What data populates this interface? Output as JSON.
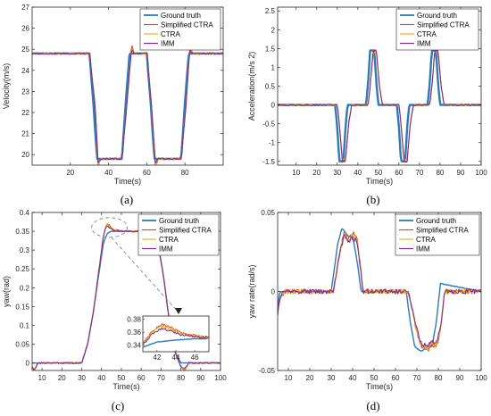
{
  "colors": {
    "Ground truth": "#2b7bba",
    "Simplified CTRA": "#d95319",
    "CTRA": "#edb120",
    "IMM": "#7e2f8e"
  },
  "chart_data": [
    {
      "type": "line",
      "caption": "(a)",
      "xlabel": "Time(s)",
      "ylabel": "Velocity(m/s)",
      "xlim": [
        0,
        100
      ],
      "ylim": [
        19.5,
        27
      ],
      "xticks": [
        20,
        40,
        60,
        80
      ],
      "yticks": [
        20,
        21,
        22,
        23,
        24,
        25,
        26,
        27
      ],
      "legend_position": "top-right",
      "legend": [
        "Ground truth",
        "Simplified CTRA",
        "CTRA",
        "IMM"
      ],
      "series": [
        {
          "name": "Ground truth",
          "x": [
            0,
            30,
            32,
            34,
            40,
            47,
            49,
            51,
            60,
            62,
            64,
            70,
            78,
            80,
            82,
            100
          ],
          "y": [
            24.8,
            24.8,
            22.5,
            19.8,
            19.8,
            19.8,
            22.5,
            24.8,
            24.8,
            22.5,
            19.8,
            19.8,
            19.8,
            22.5,
            24.8,
            24.8
          ]
        },
        {
          "name": "Simplified CTRA",
          "x": [
            0,
            30,
            33,
            34.5,
            36,
            40,
            47,
            49.5,
            52,
            53.5,
            56,
            60,
            62.5,
            64.5,
            66,
            70,
            78,
            80.5,
            82.5,
            84,
            100
          ],
          "y": [
            24.8,
            24.8,
            22.3,
            19.4,
            19.8,
            19.8,
            19.8,
            22.3,
            25.2,
            24.8,
            24.8,
            24.8,
            22.3,
            19.4,
            19.8,
            19.8,
            19.8,
            22.3,
            25.2,
            24.8,
            24.8
          ]
        },
        {
          "name": "CTRA",
          "x": [
            0,
            30,
            33,
            34.5,
            36,
            40,
            47,
            49.5,
            52,
            53.5,
            56,
            60,
            62.5,
            64.5,
            66,
            70,
            78,
            80.5,
            82.5,
            84,
            100
          ],
          "y": [
            24.8,
            24.8,
            22.3,
            19.5,
            19.8,
            19.8,
            19.8,
            22.3,
            25.1,
            24.8,
            24.8,
            24.8,
            22.3,
            19.5,
            19.8,
            19.8,
            19.8,
            22.3,
            25.1,
            24.8,
            24.8
          ]
        },
        {
          "name": "IMM",
          "x": [
            0,
            30,
            33,
            34.5,
            36,
            40,
            47,
            49.5,
            52,
            53.5,
            56,
            60,
            62.5,
            64.5,
            66,
            70,
            78,
            80.5,
            82.5,
            84,
            100
          ],
          "y": [
            24.8,
            24.8,
            22.3,
            19.6,
            19.8,
            19.8,
            19.8,
            22.3,
            25.0,
            24.8,
            24.8,
            24.8,
            22.3,
            19.6,
            19.8,
            19.8,
            19.8,
            22.3,
            25.0,
            24.8,
            24.8
          ]
        }
      ]
    },
    {
      "type": "line",
      "caption": "(b)",
      "xlabel": "Time(s)",
      "ylabel": "Acceleration(m/s 2)",
      "xlim": [
        1,
        100
      ],
      "ylim": [
        -1.6,
        2.6
      ],
      "xticks": [
        10,
        20,
        30,
        40,
        50,
        60,
        70,
        80,
        90,
        100
      ],
      "yticks": [
        -1.5,
        -1,
        -0.5,
        0,
        0.5,
        1,
        1.5,
        2,
        2.5
      ],
      "legend_position": "top-right",
      "legend": [
        "Ground truth",
        "Simplified CTRA",
        "CTRA",
        "IMM"
      ],
      "series": [
        {
          "name": "Ground truth",
          "x": [
            1,
            29,
            30,
            31,
            33,
            34,
            35,
            44,
            45,
            46,
            48,
            49,
            50,
            59,
            60,
            61,
            63,
            64,
            65,
            74,
            75,
            76,
            78,
            79,
            80,
            100
          ],
          "y": [
            0,
            0,
            -0.6,
            -1.5,
            -1.5,
            -0.6,
            0,
            0,
            0.6,
            1.45,
            1.45,
            0.6,
            0,
            0,
            -0.6,
            -1.5,
            -1.5,
            -0.6,
            0,
            0,
            0.6,
            1.45,
            1.45,
            0.6,
            0,
            0
          ]
        },
        {
          "name": "Simplified CTRA",
          "x": [
            1,
            30,
            31,
            32.5,
            34,
            35.5,
            37,
            45,
            46,
            47.5,
            49,
            50.5,
            52,
            60,
            61,
            62.5,
            64,
            65.5,
            67,
            75,
            76,
            77.5,
            79,
            80.5,
            82,
            100
          ],
          "y": [
            0,
            0,
            -0.5,
            -1.5,
            -1.5,
            -0.5,
            0,
            0,
            0.5,
            1.45,
            1.45,
            0.5,
            0,
            0,
            -0.5,
            -1.5,
            -1.5,
            -0.5,
            0,
            0,
            0.5,
            1.45,
            1.45,
            0.5,
            0,
            0
          ]
        },
        {
          "name": "CTRA",
          "x": [
            1,
            30,
            31,
            32.5,
            34,
            35.5,
            37,
            45,
            46,
            47.5,
            49,
            50.5,
            52,
            60,
            61,
            62.5,
            64,
            65.5,
            67,
            75,
            76,
            77.5,
            79,
            80.5,
            82,
            100
          ],
          "y": [
            0,
            0,
            -0.5,
            -1.45,
            -1.45,
            -0.5,
            0,
            0,
            0.5,
            1.4,
            1.4,
            0.5,
            0,
            0,
            -0.5,
            -1.45,
            -1.45,
            -0.5,
            0,
            0,
            0.5,
            1.4,
            1.4,
            0.5,
            0,
            0
          ]
        },
        {
          "name": "IMM",
          "x": [
            1,
            30,
            31,
            32.5,
            34,
            35.5,
            37,
            45,
            46,
            47.5,
            49,
            50.5,
            52,
            60,
            61,
            62.5,
            64,
            65.5,
            67,
            75,
            76,
            77.5,
            79,
            80.5,
            82,
            100
          ],
          "y": [
            0,
            0,
            -0.5,
            -1.5,
            -1.5,
            -0.5,
            0,
            0,
            0.5,
            1.45,
            1.45,
            0.5,
            0,
            0,
            -0.5,
            -1.5,
            -1.5,
            -0.5,
            0,
            0,
            0.5,
            1.45,
            1.45,
            0.5,
            0,
            0
          ]
        }
      ]
    },
    {
      "type": "line",
      "caption": "(c)",
      "xlabel": "Time(s)",
      "ylabel": "yaw(rad)",
      "xlim": [
        5,
        100
      ],
      "ylim": [
        -0.02,
        0.4
      ],
      "xticks": [
        10,
        20,
        30,
        40,
        50,
        60,
        70,
        80,
        90,
        100
      ],
      "yticks": [
        0,
        0.05,
        0.1,
        0.15,
        0.2,
        0.25,
        0.3,
        0.35,
        0.4
      ],
      "legend_position": "top-right",
      "legend": [
        "Ground truth",
        "Simplified CTRA",
        "CTRA",
        "IMM"
      ],
      "series": [
        {
          "name": "Ground truth",
          "x": [
            5,
            30,
            33,
            36,
            39,
            41,
            43,
            45,
            50,
            65,
            68,
            71,
            74,
            77,
            80,
            100
          ],
          "y": [
            0,
            0,
            0.05,
            0.14,
            0.25,
            0.32,
            0.345,
            0.35,
            0.35,
            0.35,
            0.33,
            0.24,
            0.12,
            0.03,
            0,
            0
          ]
        },
        {
          "name": "Simplified CTRA",
          "x": [
            5,
            6,
            8,
            30,
            33,
            36,
            39,
            41,
            42.5,
            44,
            46,
            50,
            65,
            68,
            71,
            74,
            77,
            80,
            82,
            84,
            100
          ],
          "y": [
            -0.01,
            -0.02,
            0,
            0,
            0.05,
            0.14,
            0.26,
            0.34,
            0.37,
            0.365,
            0.355,
            0.35,
            0.35,
            0.33,
            0.24,
            0.12,
            0.03,
            -0.01,
            -0.02,
            0,
            0
          ]
        },
        {
          "name": "CTRA",
          "x": [
            5,
            6,
            8,
            30,
            33,
            36,
            39,
            41,
            42.5,
            44,
            46,
            50,
            65,
            68,
            71,
            74,
            77,
            80,
            82,
            84,
            100
          ],
          "y": [
            -0.01,
            -0.02,
            0,
            0,
            0.05,
            0.14,
            0.26,
            0.34,
            0.368,
            0.362,
            0.354,
            0.35,
            0.35,
            0.33,
            0.24,
            0.12,
            0.03,
            -0.01,
            -0.02,
            0,
            0
          ]
        },
        {
          "name": "IMM",
          "x": [
            5,
            6,
            8,
            30,
            33,
            36,
            39,
            41,
            42.5,
            44,
            46,
            50,
            65,
            68,
            71,
            74,
            77,
            80,
            82,
            84,
            100
          ],
          "y": [
            -0.01,
            -0.02,
            0,
            0,
            0.05,
            0.14,
            0.26,
            0.34,
            0.365,
            0.36,
            0.352,
            0.35,
            0.35,
            0.33,
            0.24,
            0.12,
            0.03,
            -0.01,
            -0.015,
            0,
            0
          ]
        }
      ],
      "inset": {
        "xlim": [
          40.5,
          47.5
        ],
        "ylim": [
          0.33,
          0.385
        ],
        "xticks": [
          42,
          44,
          46
        ],
        "yticks": [
          0.34,
          0.36,
          0.38
        ],
        "series": [
          {
            "name": "Ground truth",
            "x": [
              40.5,
              42,
              44,
              46,
              47.5
            ],
            "y": [
              0.337,
              0.345,
              0.348,
              0.35,
              0.35
            ]
          },
          {
            "name": "Simplified CTRA",
            "x": [
              40.5,
              41.5,
              42.5,
              43.5,
              44.5,
              45.5,
              46.5,
              47.5
            ],
            "y": [
              0.342,
              0.362,
              0.372,
              0.367,
              0.36,
              0.356,
              0.354,
              0.352
            ]
          },
          {
            "name": "CTRA",
            "x": [
              40.5,
              41.5,
              42.5,
              43.5,
              44.5,
              45.5,
              46.5,
              47.5
            ],
            "y": [
              0.341,
              0.36,
              0.37,
              0.365,
              0.358,
              0.355,
              0.353,
              0.351
            ]
          },
          {
            "name": "IMM",
            "x": [
              40.5,
              41.5,
              42.5,
              43.5,
              44.5,
              45.5,
              46.5,
              47.5
            ],
            "y": [
              0.34,
              0.358,
              0.366,
              0.362,
              0.356,
              0.354,
              0.352,
              0.351
            ]
          }
        ]
      }
    },
    {
      "type": "line",
      "caption": "(d)",
      "xlabel": "Time(s)",
      "ylabel": "yaw rate(rad/s)",
      "xlim": [
        5,
        100
      ],
      "ylim": [
        -0.05,
        0.05
      ],
      "xticks": [
        10,
        20,
        30,
        40,
        50,
        60,
        70,
        80,
        90,
        100
      ],
      "yticks": [
        -0.05,
        0,
        0.05
      ],
      "legend_position": "top-right",
      "legend": [
        "Ground truth",
        "Simplified CTRA",
        "CTRA",
        "IMM"
      ],
      "series": [
        {
          "name": "Ground truth",
          "x": [
            5,
            6,
            8,
            30,
            33,
            35,
            38,
            40,
            42,
            44,
            65,
            67,
            69,
            72,
            75,
            77,
            79,
            81,
            100
          ],
          "y": [
            -0.01,
            0,
            0,
            0,
            0.03,
            0.04,
            0.035,
            0.035,
            0.02,
            0,
            0,
            -0.02,
            -0.035,
            -0.038,
            -0.035,
            -0.035,
            -0.02,
            0.005,
            0
          ]
        },
        {
          "name": "Simplified CTRA",
          "x": [
            5,
            6,
            8,
            31,
            34,
            36,
            38,
            40,
            42,
            45,
            66,
            69,
            72,
            75,
            77,
            79,
            81,
            83,
            100
          ],
          "y": [
            -0.015,
            -0.005,
            0,
            0,
            0.025,
            0.038,
            0.033,
            0.037,
            0.035,
            0,
            0,
            -0.02,
            -0.035,
            -0.037,
            -0.033,
            -0.035,
            -0.025,
            0,
            0
          ]
        },
        {
          "name": "CTRA",
          "x": [
            5,
            6,
            8,
            31,
            34,
            36,
            38,
            40,
            42,
            45,
            66,
            69,
            72,
            75,
            77,
            79,
            81,
            83,
            100
          ],
          "y": [
            -0.014,
            -0.005,
            0,
            0,
            0.025,
            0.036,
            0.032,
            0.035,
            0.033,
            0,
            0,
            -0.02,
            -0.034,
            -0.036,
            -0.032,
            -0.034,
            -0.024,
            0,
            0
          ]
        },
        {
          "name": "IMM",
          "x": [
            5,
            6,
            8,
            31,
            34,
            36,
            38,
            40,
            42,
            45,
            66,
            69,
            72,
            75,
            77,
            79,
            81,
            83,
            100
          ],
          "y": [
            -0.015,
            -0.004,
            0,
            0,
            0.024,
            0.035,
            0.031,
            0.034,
            0.032,
            0,
            0,
            -0.019,
            -0.033,
            -0.035,
            -0.031,
            -0.033,
            -0.023,
            0,
            0
          ]
        }
      ]
    }
  ]
}
